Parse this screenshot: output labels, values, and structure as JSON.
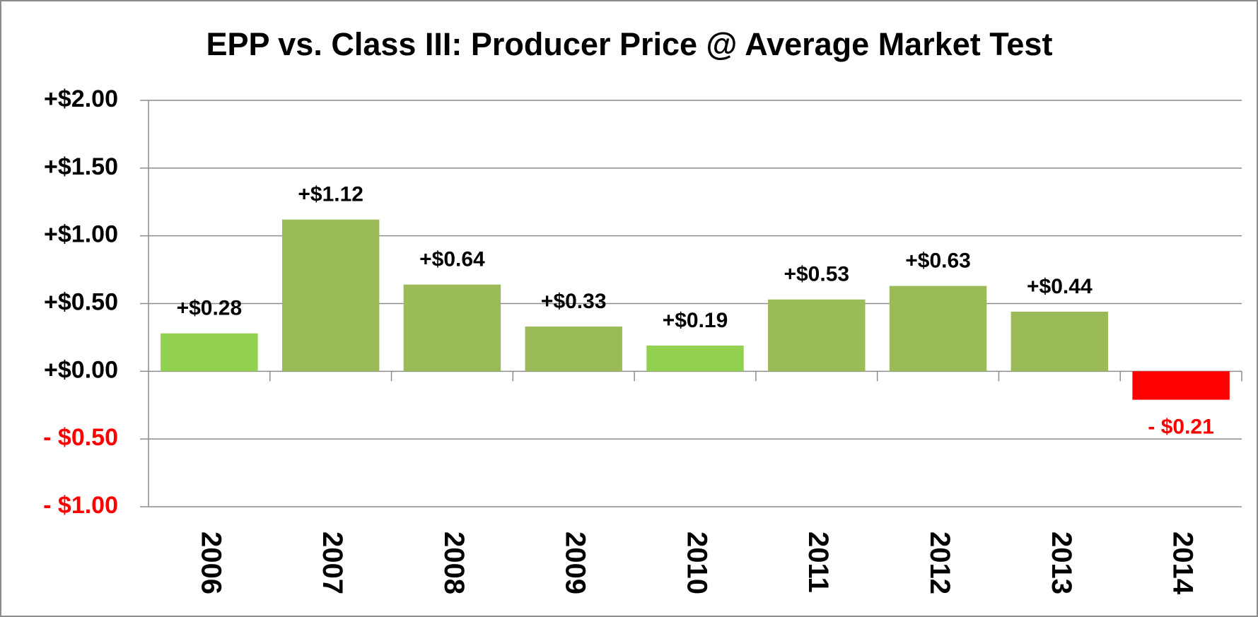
{
  "chart_data": {
    "type": "bar",
    "title": "EPP vs. Class III: Producer Price @ Average Market Test",
    "categories": [
      "2006",
      "2007",
      "2008",
      "2009",
      "2010",
      "2011",
      "2012",
      "2013",
      "2014"
    ],
    "values": [
      0.28,
      1.12,
      0.64,
      0.33,
      0.19,
      0.53,
      0.63,
      0.44,
      -0.21
    ],
    "value_labels": [
      "+$0.28",
      "+$1.12",
      "+$0.64",
      "+$0.33",
      "+$0.19",
      "+$0.53",
      "+$0.63",
      "+$0.44",
      "- $0.21"
    ],
    "colors": [
      "#92d050",
      "#9bbb59",
      "#9bbb59",
      "#9bbb59",
      "#92d050",
      "#9bbb59",
      "#9bbb59",
      "#9bbb59",
      "#ff0000"
    ],
    "negative_label_color": "#ff0000",
    "ylim": [
      -1,
      2
    ],
    "yticks": [
      {
        "value": -1,
        "label": "- $1.00"
      },
      {
        "value": -0.5,
        "label": "- $0.50"
      },
      {
        "value": 0,
        "label": "+$0.00"
      },
      {
        "value": 0.5,
        "label": "+$0.50"
      },
      {
        "value": 1,
        "label": "+$1.00"
      },
      {
        "value": 1.5,
        "label": "+$1.50"
      },
      {
        "value": 2,
        "label": "+$2.00"
      }
    ],
    "grid": true
  }
}
